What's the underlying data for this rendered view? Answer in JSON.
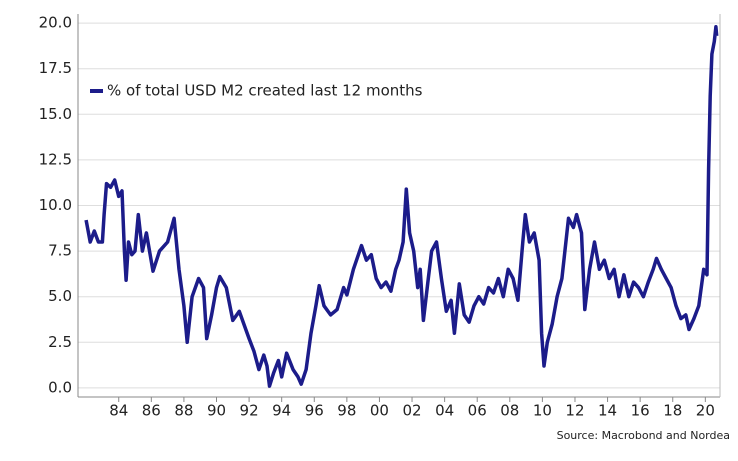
{
  "chart_data": {
    "type": "line",
    "series": [
      {
        "name": "% of total USD M2 created last 12 months",
        "color": "#1c1c8a",
        "x": [
          1982.0,
          1982.25,
          1982.5,
          1982.75,
          1983.0,
          1983.1,
          1983.25,
          1983.5,
          1983.75,
          1984.0,
          1984.2,
          1984.35,
          1984.45,
          1984.6,
          1984.8,
          1985.0,
          1985.2,
          1985.45,
          1985.7,
          1986.1,
          1986.5,
          1987.0,
          1987.4,
          1987.7,
          1988.0,
          1988.2,
          1988.5,
          1988.9,
          1989.2,
          1989.4,
          1989.7,
          1990.0,
          1990.2,
          1990.6,
          1991.0,
          1991.4,
          1991.8,
          1992.0,
          1992.3,
          1992.6,
          1992.9,
          1993.1,
          1993.25,
          1993.5,
          1993.8,
          1994.0,
          1994.3,
          1994.7,
          1995.0,
          1995.2,
          1995.5,
          1995.8,
          1996.1,
          1996.3,
          1996.6,
          1997.0,
          1997.4,
          1997.8,
          1998.0,
          1998.4,
          1998.9,
          1999.2,
          1999.5,
          1999.8,
          2000.1,
          2000.4,
          2000.7,
          2001.0,
          2001.2,
          2001.45,
          2001.65,
          2001.85,
          2002.1,
          2002.35,
          2002.5,
          2002.7,
          2003.0,
          2003.2,
          2003.5,
          2003.8,
          2004.1,
          2004.4,
          2004.6,
          2004.9,
          2005.2,
          2005.5,
          2005.8,
          2006.1,
          2006.4,
          2006.7,
          2007.0,
          2007.3,
          2007.6,
          2007.9,
          2008.2,
          2008.5,
          2008.8,
          2008.95,
          2009.2,
          2009.5,
          2009.8,
          2009.95,
          2010.1,
          2010.3,
          2010.6,
          2010.9,
          2011.2,
          2011.6,
          2011.9,
          2012.1,
          2012.4,
          2012.6,
          2012.9,
          2013.2,
          2013.5,
          2013.8,
          2014.1,
          2014.4,
          2014.7,
          2015.0,
          2015.3,
          2015.6,
          2015.9,
          2016.2,
          2016.5,
          2016.8,
          2017.0,
          2017.3,
          2017.6,
          2017.9,
          2018.2,
          2018.5,
          2018.8,
          2019.0,
          2019.3,
          2019.6,
          2019.9,
          2020.1,
          2020.2,
          2020.3,
          2020.4,
          2020.55,
          2020.65,
          2020.7
        ],
        "values": [
          9.2,
          8.0,
          8.6,
          8.0,
          8.0,
          9.5,
          11.2,
          11.0,
          11.4,
          10.5,
          10.8,
          7.5,
          5.9,
          8.0,
          7.3,
          7.5,
          9.5,
          7.5,
          8.5,
          6.4,
          7.5,
          8.0,
          9.3,
          6.5,
          4.5,
          2.5,
          5.0,
          6.0,
          5.5,
          2.7,
          4.0,
          5.5,
          6.1,
          5.5,
          3.7,
          4.2,
          3.2,
          2.7,
          2.0,
          1.0,
          1.8,
          1.2,
          0.1,
          0.8,
          1.5,
          0.6,
          1.9,
          1.0,
          0.6,
          0.2,
          1.0,
          3.0,
          4.5,
          5.6,
          4.5,
          4.0,
          4.3,
          5.5,
          5.1,
          6.5,
          7.8,
          7.0,
          7.3,
          6.0,
          5.5,
          5.8,
          5.3,
          6.5,
          7.0,
          8.0,
          10.9,
          8.5,
          7.5,
          5.5,
          6.5,
          3.7,
          6.0,
          7.5,
          8.0,
          6.0,
          4.2,
          4.8,
          3.0,
          5.7,
          4.0,
          3.6,
          4.5,
          5.0,
          4.6,
          5.5,
          5.2,
          6.0,
          5.0,
          6.5,
          6.0,
          4.8,
          8.0,
          9.5,
          8.0,
          8.5,
          7.0,
          3.0,
          1.2,
          2.5,
          3.5,
          5.0,
          6.0,
          9.3,
          8.8,
          9.5,
          8.5,
          4.3,
          6.5,
          8.0,
          6.5,
          7.0,
          6.0,
          6.5,
          5.0,
          6.2,
          5.0,
          5.8,
          5.5,
          5.0,
          5.8,
          6.5,
          7.1,
          6.5,
          6.0,
          5.5,
          4.5,
          3.8,
          4.0,
          3.2,
          3.8,
          4.5,
          6.5,
          6.2,
          12.0,
          16.0,
          18.3,
          19.0,
          19.8,
          19.3
        ]
      }
    ],
    "xlim": [
      1981.5,
      2020.9
    ],
    "xticks": [
      {
        "value": 1984,
        "label": "84"
      },
      {
        "value": 1986,
        "label": "86"
      },
      {
        "value": 1988,
        "label": "88"
      },
      {
        "value": 1990,
        "label": "90"
      },
      {
        "value": 1992,
        "label": "92"
      },
      {
        "value": 1994,
        "label": "94"
      },
      {
        "value": 1996,
        "label": "96"
      },
      {
        "value": 1998,
        "label": "98"
      },
      {
        "value": 2000,
        "label": "00"
      },
      {
        "value": 2002,
        "label": "02"
      },
      {
        "value": 2004,
        "label": "04"
      },
      {
        "value": 2006,
        "label": "06"
      },
      {
        "value": 2008,
        "label": "08"
      },
      {
        "value": 2010,
        "label": "10"
      },
      {
        "value": 2012,
        "label": "12"
      },
      {
        "value": 2014,
        "label": "14"
      },
      {
        "value": 2016,
        "label": "16"
      },
      {
        "value": 2018,
        "label": "18"
      },
      {
        "value": 2020,
        "label": "20"
      }
    ],
    "ylim": [
      -0.5,
      20.5
    ],
    "yticks": [
      {
        "value": 0,
        "label": "0.0"
      },
      {
        "value": 2.5,
        "label": "2.5"
      },
      {
        "value": 5,
        "label": "5.0"
      },
      {
        "value": 7.5,
        "label": "7.5"
      },
      {
        "value": 10,
        "label": "10.0"
      },
      {
        "value": 12.5,
        "label": "12.5"
      },
      {
        "value": 15,
        "label": "15.0"
      },
      {
        "value": 17.5,
        "label": "17.5"
      },
      {
        "value": 20,
        "label": "20.0"
      }
    ],
    "grid": true,
    "legend": "upper-left",
    "source": "Source: Macrobond and Nordea"
  }
}
